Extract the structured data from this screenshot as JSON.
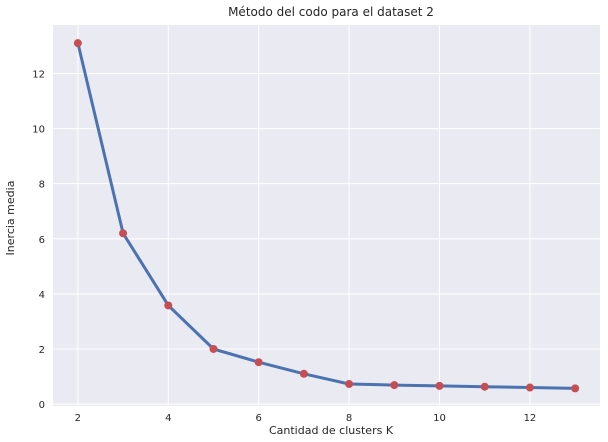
{
  "chart_data": {
    "type": "line",
    "title": "Método del codo para el dataset 2",
    "xlabel": "Cantidad de clusters K",
    "ylabel": "Inercia media",
    "x": [
      2,
      3,
      4,
      5,
      6,
      7,
      8,
      9,
      10,
      11,
      12,
      13
    ],
    "y": [
      13.1,
      6.2,
      3.58,
      2.0,
      1.52,
      1.1,
      0.73,
      0.69,
      0.66,
      0.63,
      0.6,
      0.57
    ],
    "xlim": [
      1.45,
      13.55
    ],
    "ylim": [
      -0.07,
      13.76
    ],
    "xticks": [
      2,
      4,
      6,
      8,
      10,
      12
    ],
    "yticks": [
      0,
      2,
      4,
      6,
      8,
      10,
      12
    ],
    "grid": true,
    "colors": {
      "background": "#eaeaf2",
      "grid": "#ffffff",
      "line": "#4c72b0",
      "marker": "#c44e52"
    }
  }
}
